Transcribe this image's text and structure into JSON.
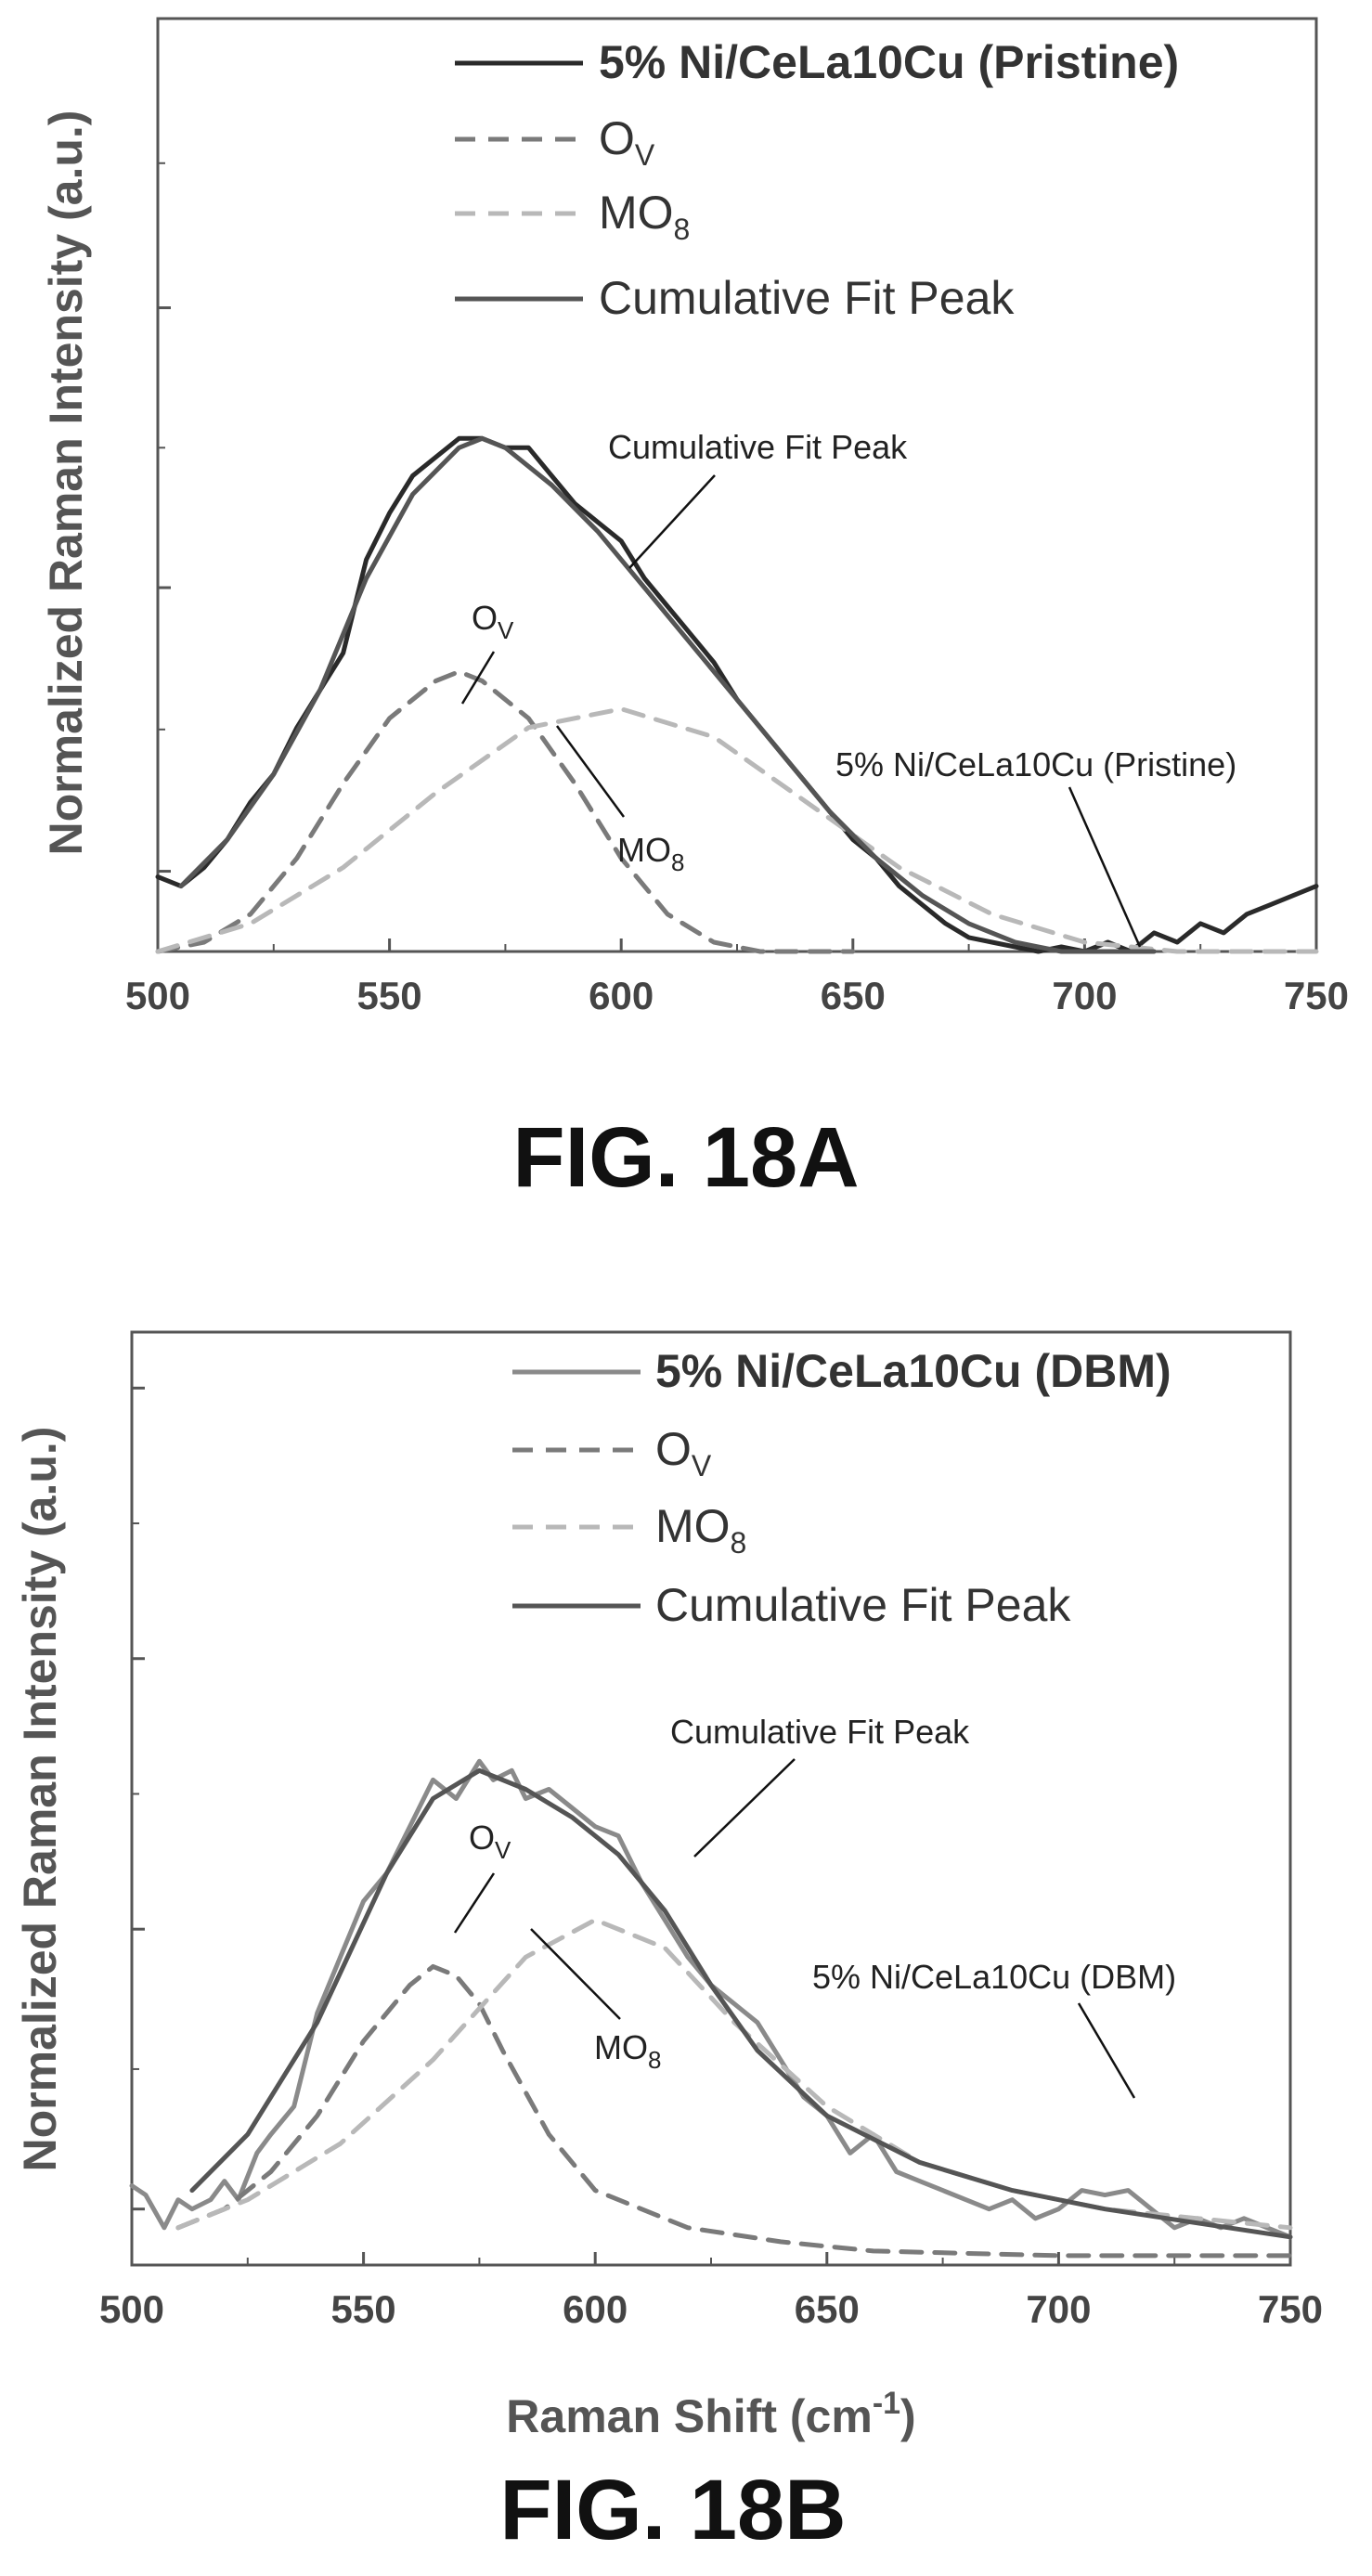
{
  "figures": [
    {
      "caption": "FIG. 18A",
      "ylabel": "Normalized Raman Intensity (a.u.)",
      "xlabel": "",
      "legend": [
        {
          "label": "5% Ni/CeLa10Cu (Pristine)",
          "bold": true,
          "style": "solid",
          "color": "#2a2a2a"
        },
        {
          "label": "O",
          "sub": "V",
          "bold": false,
          "style": "dashed",
          "color": "#7a7a7a"
        },
        {
          "label": "MO",
          "sub": "8",
          "bold": false,
          "style": "dashed",
          "color": "#b8b8b8"
        },
        {
          "label": "Cumulative Fit Peak",
          "bold": false,
          "style": "solid",
          "color": "#555555"
        }
      ],
      "annotations": [
        {
          "text": "Cumulative Fit Peak",
          "sub": ""
        },
        {
          "text": "O",
          "sub": "V"
        },
        {
          "text": "MO",
          "sub": "8"
        },
        {
          "text": "5% Ni/CeLa10Cu (Pristine)",
          "sub": ""
        }
      ]
    },
    {
      "caption": "FIG. 18B",
      "ylabel": "Normalized Raman Intensity (a.u.)",
      "xlabel": "Raman Shift (cm",
      "xlabel_sup": "-1",
      "xlabel_end": ")",
      "legend": [
        {
          "label": "5% Ni/CeLa10Cu (DBM)",
          "bold": true,
          "style": "solid",
          "color": "#8a8a8a"
        },
        {
          "label": "O",
          "sub": "V",
          "bold": false,
          "style": "dashed",
          "color": "#7a7a7a"
        },
        {
          "label": "MO",
          "sub": "8",
          "bold": false,
          "style": "dashed",
          "color": "#b8b8b8"
        },
        {
          "label": "Cumulative Fit Peak",
          "bold": false,
          "style": "solid",
          "color": "#555555"
        }
      ],
      "annotations": [
        {
          "text": "Cumulative Fit Peak",
          "sub": ""
        },
        {
          "text": "O",
          "sub": "V"
        },
        {
          "text": "MO",
          "sub": "8"
        },
        {
          "text": "5% Ni/CeLa10Cu (DBM)",
          "sub": ""
        }
      ]
    }
  ],
  "chart_data": [
    {
      "type": "line",
      "title": "FIG. 18A",
      "xlabel": "",
      "ylabel": "Normalized Raman Intensity (a.u.)",
      "xlim": [
        500,
        750
      ],
      "ylim": [
        0,
        1
      ],
      "xticks": [
        500,
        550,
        600,
        650,
        700,
        750
      ],
      "xtick_labels": [
        "500",
        "550",
        "600",
        "650",
        "700",
        "750"
      ],
      "yticks_unlabeled": [
        0.086,
        0.39,
        0.69,
        1.0
      ],
      "legend_position": "top-right",
      "grid": false,
      "series": [
        {
          "name": "5% Ni/CeLa10Cu (Pristine)",
          "style": "solid",
          "color": "#2a2a2a",
          "x": [
            500,
            505,
            510,
            515,
            520,
            525,
            530,
            535,
            540,
            545,
            550,
            555,
            560,
            565,
            570,
            575,
            580,
            585,
            590,
            595,
            600,
            605,
            610,
            615,
            620,
            625,
            630,
            635,
            640,
            645,
            650,
            655,
            660,
            665,
            670,
            675,
            680,
            685,
            690,
            695,
            700,
            705,
            710,
            715,
            720,
            725,
            730,
            735,
            740,
            745,
            750
          ],
          "y": [
            0.08,
            0.07,
            0.09,
            0.12,
            0.16,
            0.19,
            0.24,
            0.28,
            0.32,
            0.42,
            0.47,
            0.51,
            0.53,
            0.55,
            0.55,
            0.54,
            0.54,
            0.51,
            0.48,
            0.46,
            0.44,
            0.4,
            0.37,
            0.34,
            0.31,
            0.27,
            0.24,
            0.21,
            0.18,
            0.15,
            0.12,
            0.1,
            0.07,
            0.05,
            0.03,
            0.015,
            0.01,
            0.005,
            0.0,
            0.005,
            0.0,
            0.01,
            0.0,
            0.02,
            0.01,
            0.03,
            0.02,
            0.04,
            0.05,
            0.06,
            0.07
          ]
        },
        {
          "name": "O",
          "style": "dashed",
          "color": "#7a7a7a",
          "x": [
            500,
            510,
            520,
            530,
            540,
            550,
            560,
            565,
            570,
            580,
            590,
            600,
            610,
            620,
            630,
            640,
            650
          ],
          "y": [
            0.0,
            0.01,
            0.04,
            0.1,
            0.18,
            0.25,
            0.29,
            0.3,
            0.29,
            0.25,
            0.18,
            0.1,
            0.04,
            0.01,
            0.0,
            0.0,
            0.0
          ]
        },
        {
          "name": "MO",
          "style": "dashed",
          "color": "#b8b8b8",
          "x": [
            500,
            520,
            540,
            560,
            580,
            600,
            620,
            640,
            660,
            680,
            700,
            720,
            740,
            750
          ],
          "y": [
            0.0,
            0.03,
            0.09,
            0.17,
            0.24,
            0.26,
            0.23,
            0.16,
            0.09,
            0.04,
            0.01,
            0.0,
            0.0,
            0.0
          ]
        },
        {
          "name": "Cumulative Fit Peak",
          "style": "solid",
          "color": "#555555",
          "x": [
            505,
            515,
            525,
            535,
            545,
            555,
            565,
            570,
            575,
            585,
            595,
            605,
            615,
            625,
            635,
            645,
            655,
            665,
            675,
            685,
            695,
            705,
            715
          ],
          "y": [
            0.07,
            0.12,
            0.19,
            0.28,
            0.4,
            0.49,
            0.54,
            0.55,
            0.54,
            0.5,
            0.45,
            0.39,
            0.33,
            0.27,
            0.21,
            0.15,
            0.1,
            0.06,
            0.03,
            0.01,
            0.0,
            0.0,
            0.0
          ]
        }
      ]
    },
    {
      "type": "line",
      "title": "FIG. 18B",
      "xlabel": "Raman Shift (cm-1)",
      "ylabel": "Normalized Raman Intensity (a.u.)",
      "xlim": [
        500,
        750
      ],
      "ylim": [
        0,
        1
      ],
      "xticks": [
        500,
        550,
        600,
        650,
        700,
        750
      ],
      "xtick_labels": [
        "500",
        "550",
        "600",
        "650",
        "700",
        "750"
      ],
      "yticks_unlabeled": [
        0.06,
        0.36,
        0.65,
        0.94
      ],
      "legend_position": "top-right",
      "grid": false,
      "series": [
        {
          "name": "5% Ni/CeLa10Cu (DBM)",
          "style": "solid",
          "color": "#8a8a8a",
          "x": [
            500,
            503,
            507,
            510,
            513,
            517,
            520,
            523,
            527,
            530,
            535,
            540,
            545,
            550,
            555,
            560,
            565,
            570,
            575,
            578,
            582,
            585,
            590,
            595,
            600,
            605,
            610,
            615,
            620,
            625,
            630,
            635,
            640,
            645,
            650,
            655,
            660,
            665,
            670,
            675,
            680,
            685,
            690,
            695,
            700,
            705,
            710,
            715,
            720,
            725,
            730,
            735,
            740,
            745,
            750
          ],
          "y": [
            0.085,
            0.075,
            0.04,
            0.07,
            0.06,
            0.07,
            0.09,
            0.07,
            0.12,
            0.14,
            0.17,
            0.27,
            0.33,
            0.39,
            0.42,
            0.47,
            0.52,
            0.5,
            0.54,
            0.52,
            0.53,
            0.5,
            0.51,
            0.49,
            0.47,
            0.46,
            0.41,
            0.37,
            0.33,
            0.3,
            0.28,
            0.26,
            0.22,
            0.18,
            0.16,
            0.12,
            0.14,
            0.1,
            0.09,
            0.08,
            0.07,
            0.06,
            0.07,
            0.05,
            0.06,
            0.08,
            0.075,
            0.08,
            0.06,
            0.04,
            0.05,
            0.04,
            0.05,
            0.04,
            0.03
          ]
        },
        {
          "name": "O",
          "style": "dashed",
          "color": "#7a7a7a",
          "x": [
            510,
            520,
            530,
            540,
            550,
            560,
            565,
            570,
            575,
            580,
            590,
            600,
            620,
            640,
            660,
            700,
            750
          ],
          "y": [
            0.04,
            0.06,
            0.1,
            0.16,
            0.24,
            0.3,
            0.32,
            0.31,
            0.28,
            0.23,
            0.14,
            0.08,
            0.04,
            0.025,
            0.015,
            0.01,
            0.01
          ]
        },
        {
          "name": "MO",
          "style": "dashed",
          "color": "#b8b8b8",
          "x": [
            510,
            525,
            545,
            565,
            585,
            600,
            615,
            630,
            650,
            670,
            690,
            710,
            730,
            750
          ],
          "y": [
            0.04,
            0.07,
            0.13,
            0.22,
            0.33,
            0.37,
            0.34,
            0.26,
            0.17,
            0.11,
            0.08,
            0.06,
            0.05,
            0.04
          ]
        },
        {
          "name": "Cumulative Fit Peak",
          "style": "solid",
          "color": "#555555",
          "x": [
            513,
            525,
            540,
            555,
            565,
            575,
            585,
            595,
            605,
            615,
            625,
            635,
            650,
            670,
            690,
            710,
            730,
            750
          ],
          "y": [
            0.08,
            0.14,
            0.26,
            0.42,
            0.5,
            0.53,
            0.51,
            0.48,
            0.44,
            0.38,
            0.3,
            0.23,
            0.16,
            0.11,
            0.08,
            0.06,
            0.045,
            0.03
          ]
        }
      ]
    }
  ]
}
